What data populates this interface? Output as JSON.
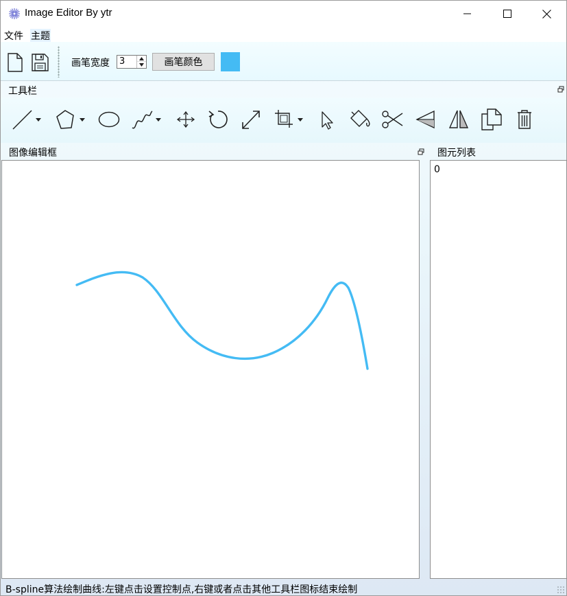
{
  "window": {
    "title": "Image Editor By ytr"
  },
  "menu": {
    "file": "文件",
    "theme": "主题"
  },
  "toolbar": {
    "pen_width_label": "画笔宽度",
    "pen_width_value": "3",
    "pen_color_label": "画笔颜色",
    "pen_color": "#44bbf4"
  },
  "tools_dock": {
    "title": "工具栏",
    "tools": [
      {
        "icon": "line-icon",
        "has_dropdown": true
      },
      {
        "icon": "polygon-icon",
        "has_dropdown": true
      },
      {
        "icon": "ellipse-icon",
        "has_dropdown": false
      },
      {
        "icon": "curve-icon",
        "has_dropdown": true
      },
      {
        "icon": "move-icon",
        "has_dropdown": false
      },
      {
        "icon": "rotate-icon",
        "has_dropdown": false
      },
      {
        "icon": "scale-icon",
        "has_dropdown": false
      },
      {
        "icon": "crop-icon",
        "has_dropdown": true
      },
      {
        "icon": "select-cursor-icon",
        "has_dropdown": false
      },
      {
        "icon": "fill-bucket-icon",
        "has_dropdown": false
      },
      {
        "icon": "scissors-icon",
        "has_dropdown": false
      },
      {
        "icon": "flip-horizontal-icon",
        "has_dropdown": false
      },
      {
        "icon": "flip-vertical-icon",
        "has_dropdown": false
      },
      {
        "icon": "copy-icon",
        "has_dropdown": false
      },
      {
        "icon": "trash-icon",
        "has_dropdown": false
      }
    ]
  },
  "canvas_panel": {
    "title": "图像编辑框",
    "curve_color": "#44bbf4"
  },
  "list_panel": {
    "title": "图元列表",
    "items": [
      "0"
    ]
  },
  "status": {
    "text": "B-spline算法绘制曲线:左键点击设置控制点,右键或者点击其他工具栏图标结束绘制"
  }
}
